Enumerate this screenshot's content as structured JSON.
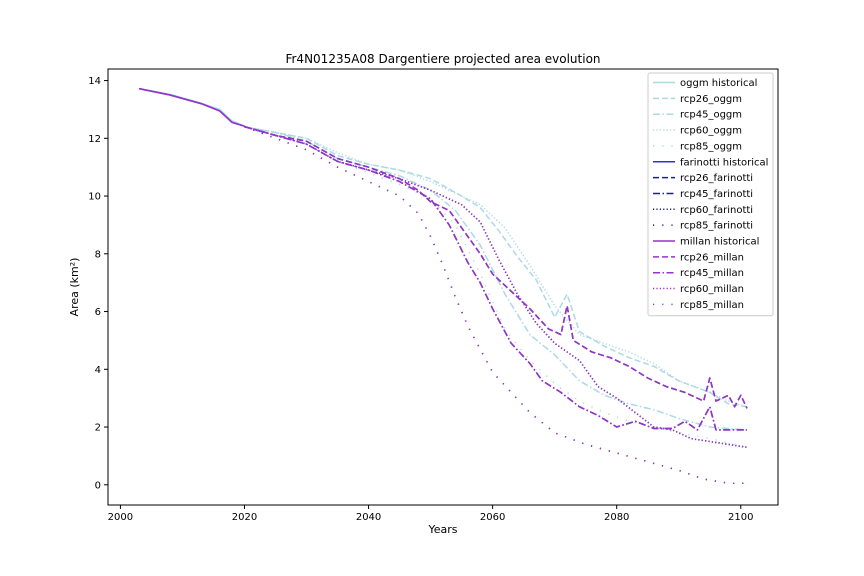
{
  "chart_data": {
    "type": "line",
    "title": "Fr4N01235A08 Dargentiere projected area evolution",
    "xlabel": "Years",
    "ylabel": "Area (km²)",
    "xlim": [
      1998,
      2106
    ],
    "ylim": [
      -0.7,
      14.4
    ],
    "xticks": [
      2000,
      2020,
      2040,
      2060,
      2080,
      2100
    ],
    "yticks": [
      0,
      2,
      4,
      6,
      8,
      10,
      12,
      14
    ],
    "grid": false,
    "legend_position": "top-right",
    "series": [
      {
        "name": "oggm historical",
        "color": "#add8e6",
        "dash": "solid",
        "x": [
          2003,
          2008,
          2013,
          2016,
          2018,
          2020
        ],
        "y": [
          13.72,
          13.52,
          13.22,
          13.0,
          12.6,
          12.42
        ]
      },
      {
        "name": "rcp26_oggm",
        "color": "#add8e6",
        "dash": "dashed",
        "x": [
          2020,
          2025,
          2030,
          2035,
          2040,
          2045,
          2050,
          2055,
          2058,
          2061,
          2064,
          2067,
          2070,
          2072,
          2074,
          2078,
          2082,
          2086,
          2090,
          2095,
          2098,
          2101
        ],
        "y": [
          12.4,
          12.2,
          12.0,
          11.4,
          11.1,
          10.9,
          10.6,
          10.0,
          9.6,
          8.8,
          7.9,
          7.1,
          5.8,
          6.6,
          5.3,
          4.8,
          4.4,
          4.1,
          3.6,
          3.2,
          2.8,
          2.7
        ]
      },
      {
        "name": "rcp45_oggm",
        "color": "#add8e6",
        "dash": "dashdot",
        "x": [
          2020,
          2025,
          2030,
          2035,
          2040,
          2045,
          2050,
          2054,
          2058,
          2062,
          2066,
          2070,
          2074,
          2078,
          2082,
          2086,
          2090,
          2095,
          2098,
          2101
        ],
        "y": [
          12.4,
          12.2,
          11.9,
          11.3,
          11.0,
          10.7,
          10.2,
          9.5,
          8.3,
          6.6,
          5.2,
          4.5,
          3.6,
          3.1,
          2.8,
          2.6,
          2.3,
          2.0,
          1.95,
          1.9
        ]
      },
      {
        "name": "rcp60_oggm",
        "color": "#add8e6",
        "dash": "dotted",
        "x": [
          2020,
          2025,
          2030,
          2035,
          2040,
          2045,
          2050,
          2055,
          2058,
          2062,
          2066,
          2070,
          2074,
          2078,
          2082,
          2086,
          2090,
          2095,
          2098,
          2101
        ],
        "y": [
          12.4,
          12.2,
          12.0,
          11.5,
          11.1,
          10.9,
          10.5,
          10.0,
          9.7,
          8.9,
          7.6,
          6.2,
          5.2,
          4.9,
          4.6,
          4.2,
          3.6,
          3.2,
          2.9,
          2.7
        ]
      },
      {
        "name": "rcp85_oggm",
        "color": "#add8e6",
        "dash": "loosedot",
        "x": [
          2020,
          2025,
          2030,
          2035,
          2040,
          2045,
          2050,
          2054,
          2058,
          2062,
          2066,
          2070,
          2074,
          2078,
          2082,
          2086,
          2090,
          2095,
          2098,
          2101
        ],
        "y": [
          12.4,
          12.1,
          11.8,
          11.2,
          10.8,
          10.4,
          9.9,
          9.0,
          7.3,
          5.4,
          4.3,
          3.5,
          2.9,
          2.5,
          2.2,
          2.0,
          1.8,
          1.6,
          1.45,
          1.3
        ]
      },
      {
        "name": "farinotti historical",
        "color": "#3232c8",
        "dash": "solid",
        "x": [
          2003,
          2008,
          2013,
          2016,
          2018,
          2020
        ],
        "y": [
          13.72,
          13.5,
          13.2,
          12.95,
          12.55,
          12.42
        ]
      },
      {
        "name": "rcp26_farinotti",
        "color": "#1e1e96",
        "dash": "dashed",
        "x": [
          2020,
          2025,
          2030,
          2035,
          2040,
          2045,
          2048,
          2050,
          2053,
          2055,
          2058,
          2060,
          2063,
          2066,
          2069,
          2071,
          2072,
          2073,
          2076,
          2079,
          2082,
          2085,
          2088,
          2091,
          2094,
          2095,
          2096,
          2098,
          2099,
          2100,
          2101
        ],
        "y": [
          12.4,
          12.1,
          11.9,
          11.3,
          11.0,
          10.6,
          10.2,
          9.8,
          9.5,
          8.9,
          8.0,
          7.3,
          6.7,
          6.1,
          5.4,
          5.2,
          6.2,
          5.0,
          4.6,
          4.4,
          4.1,
          3.7,
          3.4,
          3.2,
          2.9,
          3.7,
          2.9,
          3.1,
          2.7,
          3.1,
          2.65
        ]
      },
      {
        "name": "rcp45_farinotti",
        "color": "#1e1e96",
        "dash": "dashdot",
        "x": [
          2020,
          2025,
          2030,
          2035,
          2040,
          2045,
          2050,
          2053,
          2056,
          2058,
          2060,
          2063,
          2066,
          2068,
          2071,
          2074,
          2077,
          2080,
          2083,
          2086,
          2089,
          2091,
          2093,
          2095,
          2096,
          2098,
          2101
        ],
        "y": [
          12.4,
          12.1,
          11.8,
          11.2,
          10.9,
          10.5,
          9.9,
          9.0,
          7.7,
          7.0,
          6.1,
          4.9,
          4.2,
          3.6,
          3.2,
          2.7,
          2.4,
          2.0,
          2.2,
          1.95,
          1.95,
          2.2,
          1.9,
          2.7,
          1.9,
          1.9,
          1.9
        ]
      },
      {
        "name": "rcp60_farinotti",
        "color": "#1e1e96",
        "dash": "dotted",
        "x": [
          2020,
          2025,
          2030,
          2035,
          2040,
          2045,
          2050,
          2055,
          2058,
          2061,
          2064,
          2067,
          2070,
          2074,
          2077,
          2080,
          2083,
          2086,
          2089,
          2092,
          2095,
          2098,
          2101
        ],
        "y": [
          12.4,
          12.1,
          11.8,
          11.2,
          10.9,
          10.6,
          10.2,
          9.7,
          9.1,
          7.8,
          6.6,
          5.6,
          4.9,
          4.3,
          3.4,
          3.0,
          2.5,
          2.0,
          1.9,
          1.6,
          1.5,
          1.4,
          1.3
        ]
      },
      {
        "name": "rcp85_farinotti",
        "color": "#1e1e96",
        "dash": "loosedot",
        "x": [
          2020,
          2025,
          2030,
          2035,
          2040,
          2045,
          2048,
          2050,
          2052,
          2054,
          2056,
          2058,
          2060,
          2063,
          2066,
          2070,
          2075,
          2080,
          2085,
          2090,
          2094,
          2098,
          2101
        ],
        "y": [
          12.4,
          12.0,
          11.6,
          11.0,
          10.5,
          10.0,
          9.4,
          8.6,
          7.6,
          6.5,
          5.5,
          4.7,
          3.9,
          3.2,
          2.5,
          1.8,
          1.4,
          1.1,
          0.8,
          0.5,
          0.2,
          0.05,
          0.05
        ]
      },
      {
        "name": "millan historical",
        "color": "#9932cc",
        "dash": "solid",
        "x": [
          2003,
          2008,
          2013,
          2016,
          2018,
          2020
        ],
        "y": [
          13.72,
          13.5,
          13.2,
          12.95,
          12.55,
          12.42
        ]
      },
      {
        "name": "rcp26_millan",
        "color": "#9932cc",
        "dash": "dashed",
        "x": [
          2020,
          2025,
          2030,
          2035,
          2040,
          2045,
          2048,
          2050,
          2053,
          2055,
          2058,
          2060,
          2063,
          2066,
          2069,
          2071,
          2072,
          2073,
          2076,
          2079,
          2082,
          2085,
          2088,
          2091,
          2094,
          2095,
          2096,
          2098,
          2099,
          2100,
          2101
        ],
        "y": [
          12.4,
          12.1,
          11.9,
          11.3,
          11.0,
          10.6,
          10.2,
          9.8,
          9.5,
          8.9,
          8.0,
          7.3,
          6.7,
          6.1,
          5.4,
          5.2,
          6.2,
          5.0,
          4.6,
          4.4,
          4.1,
          3.7,
          3.4,
          3.2,
          2.9,
          3.7,
          2.9,
          3.1,
          2.7,
          3.1,
          2.65
        ]
      },
      {
        "name": "rcp45_millan",
        "color": "#9932cc",
        "dash": "dashdot",
        "x": [
          2020,
          2025,
          2030,
          2035,
          2040,
          2045,
          2050,
          2053,
          2056,
          2058,
          2060,
          2063,
          2066,
          2068,
          2071,
          2074,
          2077,
          2080,
          2083,
          2086,
          2089,
          2091,
          2093,
          2095,
          2096,
          2098,
          2101
        ],
        "y": [
          12.4,
          12.1,
          11.8,
          11.2,
          10.9,
          10.5,
          9.9,
          9.0,
          7.7,
          7.0,
          6.1,
          4.9,
          4.2,
          3.6,
          3.2,
          2.7,
          2.4,
          2.0,
          2.2,
          1.95,
          1.95,
          2.2,
          1.9,
          2.7,
          1.9,
          1.9,
          1.9
        ]
      },
      {
        "name": "rcp60_millan",
        "color": "#9932cc",
        "dash": "dotted",
        "x": [
          2020,
          2025,
          2030,
          2035,
          2040,
          2045,
          2050,
          2055,
          2058,
          2061,
          2064,
          2067,
          2070,
          2074,
          2077,
          2080,
          2083,
          2086,
          2089,
          2092,
          2095,
          2098,
          2101
        ],
        "y": [
          12.4,
          12.1,
          11.8,
          11.2,
          10.9,
          10.6,
          10.2,
          9.7,
          9.1,
          7.8,
          6.6,
          5.6,
          4.9,
          4.3,
          3.4,
          3.0,
          2.5,
          2.0,
          1.9,
          1.6,
          1.5,
          1.4,
          1.3
        ]
      },
      {
        "name": "rcp85_millan",
        "color": "#9932cc",
        "dash": "loosedot",
        "x": [
          2020,
          2025,
          2030,
          2035,
          2040,
          2045,
          2048,
          2050,
          2052,
          2054,
          2056,
          2058,
          2060,
          2063,
          2066,
          2070,
          2075,
          2080,
          2085,
          2090,
          2094,
          2098,
          2101
        ],
        "y": [
          12.4,
          12.0,
          11.6,
          11.0,
          10.5,
          10.0,
          9.4,
          8.6,
          7.6,
          6.5,
          5.5,
          4.7,
          3.9,
          3.2,
          2.5,
          1.8,
          1.4,
          1.1,
          0.8,
          0.5,
          0.2,
          0.05,
          0.05
        ]
      }
    ]
  }
}
